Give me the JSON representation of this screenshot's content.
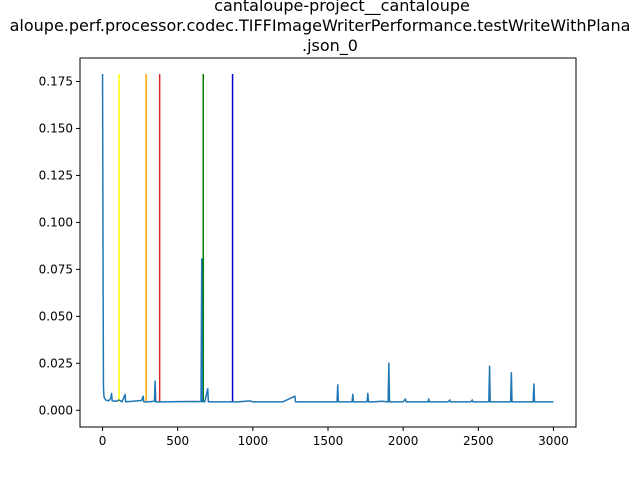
{
  "chart_data": {
    "type": "line",
    "title_lines": [
      "cantaloupe-project__cantaloupe",
      "aloupe.perf.processor.codec.TIFFImageWriterPerformance.testWriteWithPlana",
      ".json_0"
    ],
    "xlabel": "",
    "ylabel": "",
    "xlim": [
      -150,
      3150
    ],
    "ylim": [
      -0.0089,
      0.1875
    ],
    "x_ticks": [
      0,
      500,
      1000,
      1500,
      2000,
      2500,
      3000
    ],
    "y_ticks": [
      0.0,
      0.025,
      0.05,
      0.075,
      0.1,
      0.125,
      0.15,
      0.175
    ],
    "x_tick_labels": [
      "0",
      "500",
      "1000",
      "1500",
      "2000",
      "2500",
      "3000"
    ],
    "y_tick_labels": [
      "0.000",
      "0.025",
      "0.050",
      "0.075",
      "0.100",
      "0.125",
      "0.150",
      "0.175"
    ],
    "grid": false,
    "series_color": "#1f77b4",
    "baseline": 0.0045,
    "series_points": [
      [
        0,
        0.179
      ],
      [
        2,
        0.12
      ],
      [
        4,
        0.06
      ],
      [
        6,
        0.012
      ],
      [
        10,
        0.007
      ],
      [
        20,
        0.0055
      ],
      [
        40,
        0.005
      ],
      [
        55,
        0.0065
      ],
      [
        60,
        0.009
      ],
      [
        64,
        0.005
      ],
      [
        90,
        0.0048
      ],
      [
        110,
        0.0055
      ],
      [
        130,
        0.0045
      ],
      [
        150,
        0.0085
      ],
      [
        154,
        0.0045
      ],
      [
        200,
        0.0048
      ],
      [
        260,
        0.0052
      ],
      [
        270,
        0.0075
      ],
      [
        274,
        0.0045
      ],
      [
        300,
        0.0045
      ],
      [
        345,
        0.0048
      ],
      [
        350,
        0.0155
      ],
      [
        354,
        0.0045
      ],
      [
        400,
        0.0045
      ],
      [
        500,
        0.0046
      ],
      [
        600,
        0.0047
      ],
      [
        655,
        0.0046
      ],
      [
        660,
        0.0805
      ],
      [
        664,
        0.0046
      ],
      [
        680,
        0.0045
      ],
      [
        700,
        0.0115
      ],
      [
        704,
        0.0045
      ],
      [
        800,
        0.0045
      ],
      [
        900,
        0.0045
      ],
      [
        980,
        0.005
      ],
      [
        1000,
        0.0045
      ],
      [
        1100,
        0.0045
      ],
      [
        1200,
        0.0045
      ],
      [
        1280,
        0.0075
      ],
      [
        1284,
        0.0045
      ],
      [
        1350,
        0.0045
      ],
      [
        1400,
        0.0045
      ],
      [
        1560,
        0.0045
      ],
      [
        1565,
        0.0135
      ],
      [
        1569,
        0.0045
      ],
      [
        1660,
        0.0045
      ],
      [
        1665,
        0.0085
      ],
      [
        1669,
        0.0045
      ],
      [
        1700,
        0.0045
      ],
      [
        1760,
        0.0045
      ],
      [
        1765,
        0.009
      ],
      [
        1769,
        0.0045
      ],
      [
        1800,
        0.0045
      ],
      [
        1860,
        0.0048
      ],
      [
        1900,
        0.0045
      ],
      [
        1905,
        0.025
      ],
      [
        1909,
        0.0045
      ],
      [
        2000,
        0.0045
      ],
      [
        2015,
        0.006
      ],
      [
        2019,
        0.0045
      ],
      [
        2100,
        0.0045
      ],
      [
        2165,
        0.0045
      ],
      [
        2170,
        0.006
      ],
      [
        2174,
        0.0045
      ],
      [
        2300,
        0.0045
      ],
      [
        2310,
        0.0055
      ],
      [
        2314,
        0.0045
      ],
      [
        2450,
        0.0045
      ],
      [
        2460,
        0.0055
      ],
      [
        2464,
        0.0045
      ],
      [
        2570,
        0.0045
      ],
      [
        2575,
        0.0235
      ],
      [
        2579,
        0.0045
      ],
      [
        2600,
        0.0045
      ],
      [
        2700,
        0.0045
      ],
      [
        2715,
        0.0045
      ],
      [
        2720,
        0.02
      ],
      [
        2724,
        0.0045
      ],
      [
        2800,
        0.0045
      ],
      [
        2865,
        0.0045
      ],
      [
        2870,
        0.014
      ],
      [
        2874,
        0.0045
      ],
      [
        2900,
        0.0045
      ],
      [
        3000,
        0.0045
      ]
    ],
    "vlines": [
      {
        "x": 110,
        "y_top": 0.179,
        "color": "#ffff00"
      },
      {
        "x": 290,
        "y_top": 0.179,
        "color": "#ffa500"
      },
      {
        "x": 380,
        "y_top": 0.179,
        "color": "#d62728"
      },
      {
        "x": 670,
        "y_top": 0.179,
        "color": "#008000"
      },
      {
        "x": 865,
        "y_top": 0.179,
        "color": "#0000cc"
      }
    ]
  }
}
